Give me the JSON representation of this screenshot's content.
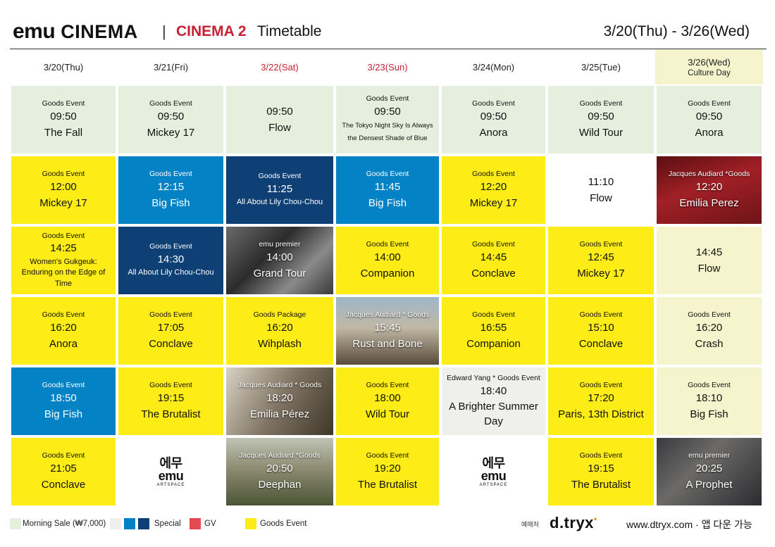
{
  "header": {
    "brand_emu": "emu",
    "brand_cinema": "CINEMA",
    "separator": "|",
    "hall": "CINEMA 2",
    "title": "Timetable",
    "range": "3/20(Thu) - 3/26(Wed)"
  },
  "days": [
    {
      "label": "3/20(Thu)",
      "sub": "",
      "color": "#222222"
    },
    {
      "label": "3/21(Fri)",
      "sub": "",
      "color": "#222222"
    },
    {
      "label": "3/22(Sat)",
      "sub": "",
      "color": "#c62233"
    },
    {
      "label": "3/23(Sun)",
      "sub": "",
      "color": "#c62233"
    },
    {
      "label": "3/24(Mon)",
      "sub": "",
      "color": "#222222"
    },
    {
      "label": "3/25(Tue)",
      "sub": "",
      "color": "#222222"
    },
    {
      "label": "3/26(Wed)",
      "sub": "Culture Day",
      "color": "#222222"
    }
  ],
  "schedule": [
    [
      {
        "event": "Goods Event",
        "time": "09:50",
        "movie": "The Fall",
        "style": "green"
      },
      {
        "event": "Goods Event",
        "time": "12:00",
        "movie": "Mickey 17",
        "style": "yellow"
      },
      {
        "event": "Goods Event",
        "time": "14:25",
        "movie": "Women's Gukgeuk: Enduring on the Edge of Time",
        "style": "yellow"
      },
      {
        "event": "Goods Event",
        "time": "16:20",
        "movie": "Anora",
        "style": "yellow"
      },
      {
        "event": "Goods Event",
        "time": "18:50",
        "movie": "Big Fish",
        "style": "blue"
      },
      {
        "event": "Goods Event",
        "time": "21:05",
        "movie": "Conclave",
        "style": "yellow"
      }
    ],
    [
      {
        "event": "Goods Event",
        "time": "09:50",
        "movie": "Mickey 17",
        "style": "green"
      },
      {
        "event": "Goods Event",
        "time": "12:15",
        "movie": "Big Fish",
        "style": "blue"
      },
      {
        "event": "Goods Event",
        "time": "14:30",
        "movie": "All About Lily Chou-Chou",
        "style": "navy"
      },
      {
        "event": "Goods Event",
        "time": "17:05",
        "movie": "Conclave",
        "style": "yellow"
      },
      {
        "event": "Goods Event",
        "time": "19:15",
        "movie": "The Brutalist",
        "style": "yellow"
      },
      {
        "event": "",
        "time": "",
        "movie": "",
        "style": "logo"
      }
    ],
    [
      {
        "event": "",
        "time": "09:50",
        "movie": "Flow",
        "style": "green"
      },
      {
        "event": "Goods Event",
        "time": "11:25",
        "movie": "All About Lily Chou-Chou",
        "style": "navy"
      },
      {
        "event": "emu premier",
        "time": "14:00",
        "movie": "Grand Tour",
        "style": "photo-bw"
      },
      {
        "event": "Goods Package",
        "time": "16:20",
        "movie": "Wihplash",
        "style": "yellow"
      },
      {
        "event": "Jacques Audiard * Goods",
        "time": "18:20",
        "movie": "Emilia Pérez",
        "style": "photo-room"
      },
      {
        "event": "Jacques Audiard *Goods",
        "time": "20:50",
        "movie": "Deephan",
        "style": "photo-field"
      }
    ],
    [
      {
        "event": "Goods Event",
        "time": "09:50",
        "movie": "The Tokyo Night Sky Is Always the Densest Shade of Blue",
        "style": "green"
      },
      {
        "event": "Goods Event",
        "time": "11:45",
        "movie": "Big Fish",
        "style": "blue"
      },
      {
        "event": "Goods Event",
        "time": "14:00",
        "movie": "Companion",
        "style": "yellow"
      },
      {
        "event": "Jacques Audiard * Goods",
        "time": "15:45",
        "movie": "Rust and Bone",
        "style": "photo-beach"
      },
      {
        "event": "Goods Event",
        "time": "18:00",
        "movie": "Wild Tour",
        "style": "yellow"
      },
      {
        "event": "Goods Event",
        "time": "19:20",
        "movie": "The Brutalist",
        "style": "yellow"
      }
    ],
    [
      {
        "event": "Goods Event",
        "time": "09:50",
        "movie": "Anora",
        "style": "green"
      },
      {
        "event": "Goods Event",
        "time": "12:20",
        "movie": "Mickey 17",
        "style": "yellow"
      },
      {
        "event": "Goods Event",
        "time": "14:45",
        "movie": "Conclave",
        "style": "yellow"
      },
      {
        "event": "Goods Event",
        "time": "16:55",
        "movie": "Companion",
        "style": "yellow"
      },
      {
        "event": "Edward Yang * Goods Event",
        "time": "18:40",
        "movie": "A Brighter Summer Day",
        "style": "linen"
      },
      {
        "event": "",
        "time": "",
        "movie": "",
        "style": "logo"
      }
    ],
    [
      {
        "event": "Goods Event",
        "time": "09:50",
        "movie": "Wild Tour",
        "style": "green"
      },
      {
        "event": "",
        "time": "11:10",
        "movie": "Flow",
        "style": "white"
      },
      {
        "event": "Goods Event",
        "time": "12:45",
        "movie": "Mickey 17",
        "style": "yellow"
      },
      {
        "event": "Goods Event",
        "time": "15:10",
        "movie": "Conclave",
        "style": "yellow"
      },
      {
        "event": "Goods Event",
        "time": "17:20",
        "movie": "Paris, 13th District",
        "style": "yellow"
      },
      {
        "event": "Goods Event",
        "time": "19:15",
        "movie": "The Brutalist",
        "style": "yellow"
      }
    ],
    [
      {
        "event": "Goods Event",
        "time": "09:50",
        "movie": "Anora",
        "style": "green"
      },
      {
        "event": "Jacques Audiard *Goods",
        "time": "12:20",
        "movie": "Emilia Perez",
        "style": "photo-red"
      },
      {
        "event": "",
        "time": "14:45",
        "movie": "Flow",
        "style": "cream"
      },
      {
        "event": "Goods Event",
        "time": "16:20",
        "movie": "Crash",
        "style": "cream"
      },
      {
        "event": "Goods Event",
        "time": "18:10",
        "movie": "Big Fish",
        "style": "cream"
      },
      {
        "event": "emu premier",
        "time": "20:25",
        "movie": "A Prophet",
        "style": "photo-prophet"
      }
    ]
  ],
  "artspace_logo": {
    "top": "에무",
    "mid": "emu",
    "sub": "ARTSPACE"
  },
  "legend": {
    "morning_sale": "Morning Sale (₩7,000)",
    "special": "Special",
    "gv": "GV",
    "goods_event": "Goods Event",
    "colors": {
      "morning": "#e6efdd",
      "special1": "#efefec",
      "special2": "#0383c6",
      "special3": "#0e3f75",
      "gv": "#e04a50",
      "goods": "#fdec15"
    }
  },
  "footer": {
    "booking_label": "예매처",
    "booking_brand": "d.tryx",
    "site": "www.dtryx.com · 앱 다운 가능"
  }
}
